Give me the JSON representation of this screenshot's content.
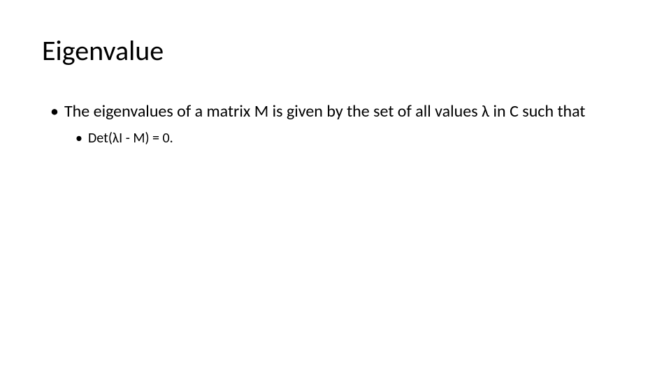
{
  "slide": {
    "title": "Eigenvalue",
    "title_fontsize": 40,
    "title_color": "#000000",
    "background_color": "#ffffff",
    "body": {
      "level1_fontsize": 24,
      "level2_fontsize": 20,
      "text_color": "#000000",
      "bullet_char": "•",
      "items": [
        {
          "text": "The eigenvalues of a matrix M is given by the set of all values λ in C such that",
          "children": [
            {
              "text": "Det(λI - M) = 0."
            }
          ]
        }
      ]
    }
  }
}
